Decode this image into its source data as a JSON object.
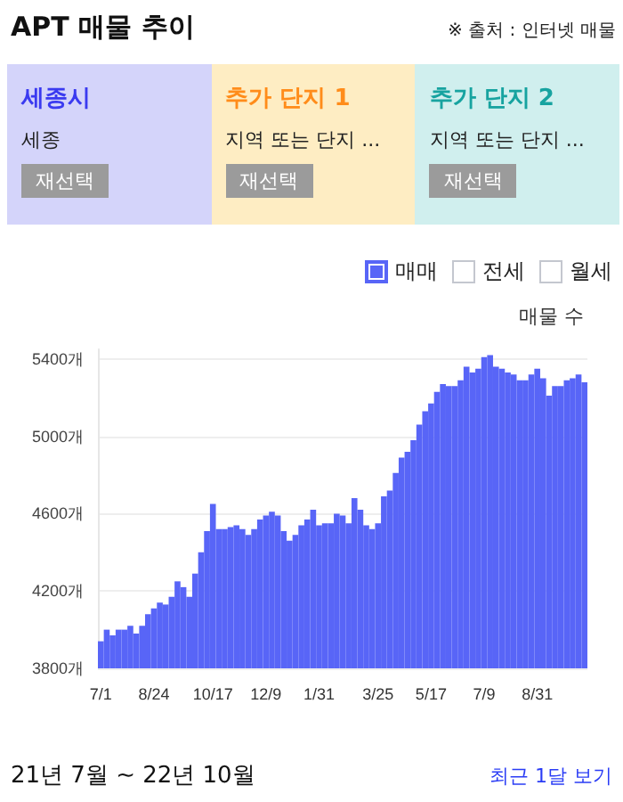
{
  "chart_data": {
    "type": "bar",
    "title": "APT 매물 추이",
    "ylabel": "매물 수",
    "annotations": [
      "※ 출처 : 인터넷 매물",
      "세종시",
      "세종",
      "재선택",
      "추가 단지 1",
      "지역 또는 단지 ...",
      "재선택",
      "추가 단지 2",
      "지역 또는 단지 ...",
      "재선택",
      "전세",
      "월세",
      "21년 7월 ~ 22년 10월",
      "최근 1달 보기"
    ],
    "categories": [
      "7/1",
      null,
      null,
      null,
      null,
      null,
      null,
      null,
      null,
      "8/24",
      null,
      null,
      null,
      null,
      null,
      null,
      null,
      null,
      null,
      "10/17",
      null,
      null,
      null,
      null,
      null,
      null,
      null,
      null,
      "12/9",
      null,
      null,
      null,
      null,
      null,
      null,
      null,
      null,
      "1/31",
      null,
      null,
      null,
      null,
      null,
      null,
      null,
      null,
      null,
      "3/25",
      null,
      null,
      null,
      null,
      null,
      null,
      null,
      null,
      "5/17",
      null,
      null,
      null,
      null,
      null,
      null,
      null,
      null,
      "7/9",
      null,
      null,
      null,
      null,
      null,
      null,
      null,
      null,
      "8/31",
      null,
      null,
      null,
      null,
      null,
      null,
      null,
      null
    ],
    "series": [
      {
        "name": "매매",
        "color": "#5865f7",
        "values": [
          3940,
          4000,
          3970,
          4000,
          4000,
          4020,
          3980,
          4020,
          4080,
          4110,
          4140,
          4130,
          4170,
          4250,
          4220,
          4170,
          4290,
          4400,
          4510,
          4650,
          4520,
          4520,
          4530,
          4540,
          4520,
          4490,
          4520,
          4570,
          4590,
          4610,
          4590,
          4510,
          4460,
          4490,
          4540,
          4570,
          4620,
          4540,
          4550,
          4550,
          4600,
          4590,
          4550,
          4680,
          4620,
          4540,
          4520,
          4550,
          4690,
          4720,
          4810,
          4890,
          4920,
          4980,
          5060,
          5130,
          5170,
          5230,
          5270,
          5260,
          5260,
          5290,
          5360,
          5330,
          5350,
          5410,
          5420,
          5360,
          5350,
          5330,
          5320,
          5290,
          5290,
          5320,
          5350,
          5300,
          5210,
          5260,
          5260,
          5290,
          5300,
          5320,
          5280
        ]
      }
    ],
    "ylim": [
      3800,
      5450
    ],
    "yticks": [
      {
        "value": 3800,
        "label": "3800개"
      },
      {
        "value": 4200,
        "label": "4200개"
      },
      {
        "value": 4600,
        "label": "4600개"
      },
      {
        "value": 5000,
        "label": "5000개"
      },
      {
        "value": 5400,
        "label": "5400개"
      }
    ],
    "grid": "y",
    "legend": "top right"
  }
}
